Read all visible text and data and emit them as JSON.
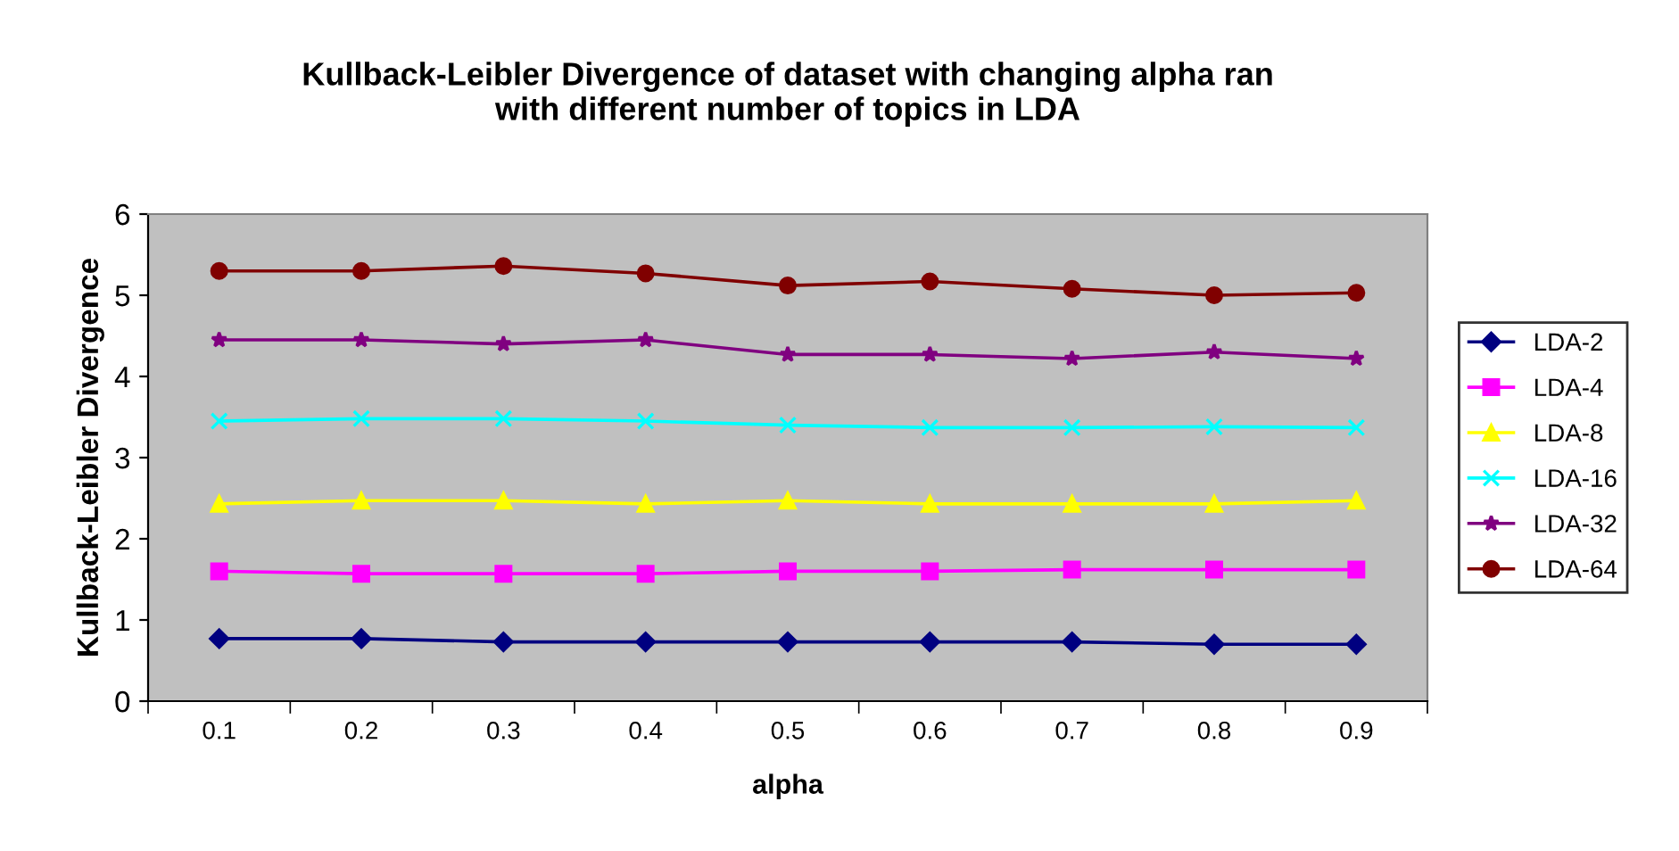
{
  "chart_data": {
    "type": "line",
    "title": "Kullback-Leibler Divergence of dataset with changing alpha ran\nwith different number of topics in LDA",
    "xlabel": "alpha",
    "ylabel": "Kullback-Leibler Divergence",
    "categories": [
      "0.1",
      "0.2",
      "0.3",
      "0.4",
      "0.5",
      "0.6",
      "0.7",
      "0.8",
      "0.9"
    ],
    "ylim": [
      0,
      6
    ],
    "yticks": [
      0,
      1,
      2,
      3,
      4,
      5,
      6
    ],
    "grid": false,
    "legend": "right",
    "line_style": "solid",
    "series": [
      {
        "name": "LDA-2",
        "color": "#000080",
        "marker": "diamond",
        "values": [
          0.77,
          0.77,
          0.73,
          0.73,
          0.73,
          0.73,
          0.73,
          0.7,
          0.7
        ]
      },
      {
        "name": "LDA-4",
        "color": "#ff00ff",
        "marker": "square",
        "values": [
          1.6,
          1.57,
          1.57,
          1.57,
          1.6,
          1.6,
          1.62,
          1.62,
          1.62
        ]
      },
      {
        "name": "LDA-8",
        "color": "#ffff00",
        "marker": "triangle",
        "values": [
          2.43,
          2.47,
          2.47,
          2.43,
          2.47,
          2.43,
          2.43,
          2.43,
          2.47
        ]
      },
      {
        "name": "LDA-16",
        "color": "#00ffff",
        "marker": "cross",
        "values": [
          3.45,
          3.48,
          3.48,
          3.45,
          3.4,
          3.37,
          3.37,
          3.38,
          3.37
        ]
      },
      {
        "name": "LDA-32",
        "color": "#800080",
        "marker": "star",
        "values": [
          4.45,
          4.45,
          4.4,
          4.45,
          4.27,
          4.27,
          4.22,
          4.3,
          4.22
        ]
      },
      {
        "name": "LDA-64",
        "color": "#800000",
        "marker": "circle",
        "values": [
          5.3,
          5.3,
          5.36,
          5.27,
          5.12,
          5.17,
          5.08,
          5.0,
          5.03
        ]
      }
    ]
  }
}
